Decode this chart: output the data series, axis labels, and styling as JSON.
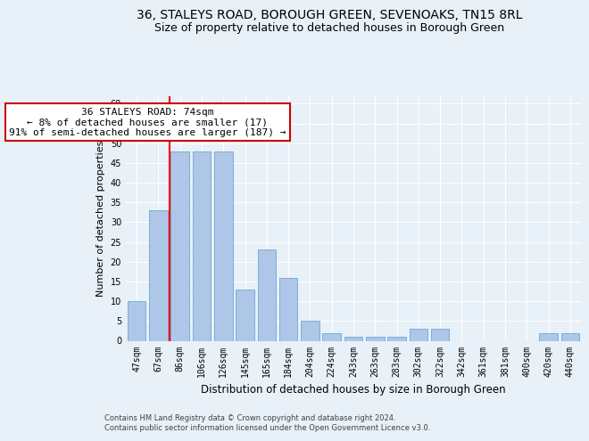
{
  "title_line1": "36, STALEYS ROAD, BOROUGH GREEN, SEVENOAKS, TN15 8RL",
  "title_line2": "Size of property relative to detached houses in Borough Green",
  "xlabel": "Distribution of detached houses by size in Borough Green",
  "ylabel": "Number of detached properties",
  "categories": [
    "47sqm",
    "67sqm",
    "86sqm",
    "106sqm",
    "126sqm",
    "145sqm",
    "165sqm",
    "184sqm",
    "204sqm",
    "224sqm",
    "243sqm",
    "263sqm",
    "283sqm",
    "302sqm",
    "322sqm",
    "342sqm",
    "361sqm",
    "381sqm",
    "400sqm",
    "420sqm",
    "440sqm"
  ],
  "values": [
    10,
    33,
    48,
    48,
    48,
    13,
    23,
    16,
    5,
    2,
    1,
    1,
    1,
    3,
    3,
    0,
    0,
    0,
    0,
    2,
    2
  ],
  "bar_color": "#aec6e8",
  "bar_edge_color": "#7aafd4",
  "red_line_index": 1.5,
  "annotation_text": "36 STALEYS ROAD: 74sqm\n← 8% of detached houses are smaller (17)\n91% of semi-detached houses are larger (187) →",
  "annotation_box_color": "#ffffff",
  "annotation_box_edge_color": "#cc0000",
  "ylim": [
    0,
    62
  ],
  "yticks": [
    0,
    5,
    10,
    15,
    20,
    25,
    30,
    35,
    40,
    45,
    50,
    55,
    60
  ],
  "footer_line1": "Contains HM Land Registry data © Crown copyright and database right 2024.",
  "footer_line2": "Contains public sector information licensed under the Open Government Licence v3.0.",
  "background_color": "#e8f0f8",
  "plot_background_color": "#e8f0f8",
  "grid_color": "#ffffff",
  "title_fontsize": 10,
  "subtitle_fontsize": 9,
  "tick_fontsize": 7,
  "ylabel_fontsize": 8,
  "xlabel_fontsize": 8.5
}
